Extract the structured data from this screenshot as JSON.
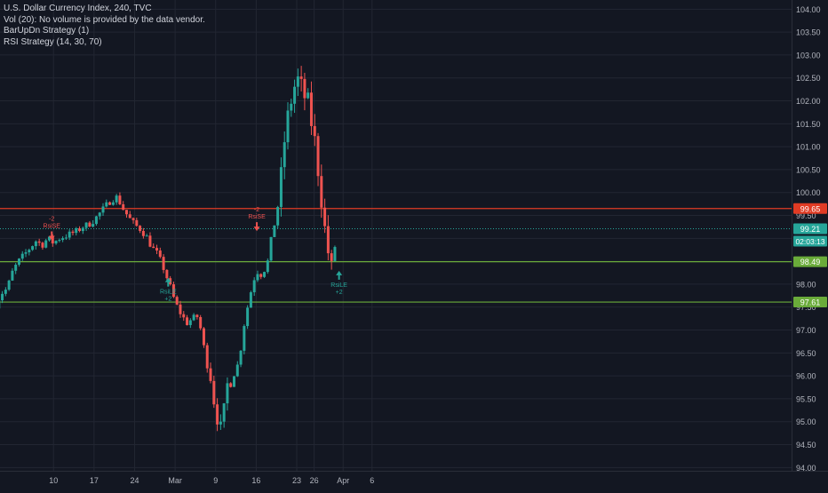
{
  "legend": {
    "title": "U.S. Dollar Currency Index, 240, TVC",
    "volume_note": "Vol (20): No volume is provided by the data vendor.",
    "strategy_1": "BarUpDn Strategy (1)",
    "strategy_2": "RSI Strategy (14, 30, 70)"
  },
  "colors": {
    "background": "#131722",
    "grid": "#222632",
    "up_candle": "#26a69a",
    "down_candle": "#ef5350",
    "resistance_line": "#e03b24",
    "support_line": "#6aab3a",
    "current_price_line": "#26a69a",
    "text": "#d1d4dc",
    "axis_text": "#b2b5be",
    "short_signal": "#ef5350",
    "long_signal": "#26a69a"
  },
  "chart_data": {
    "type": "candlestick",
    "title": "U.S. Dollar Currency Index, 240, TVC",
    "timeframe": "240",
    "source": "TVC",
    "ylim": [
      93.9,
      104.1
    ],
    "y_ticks": [
      "94.00",
      "94.50",
      "95.00",
      "95.50",
      "96.00",
      "96.50",
      "97.00",
      "97.50",
      "98.00",
      "98.50",
      "99.00",
      "99.50",
      "100.00",
      "100.50",
      "101.00",
      "101.50",
      "102.00",
      "102.50",
      "103.00",
      "103.50",
      "104.00"
    ],
    "x_ticks": [
      {
        "label": "10",
        "t": 10
      },
      {
        "label": "17",
        "t": 17
      },
      {
        "label": "24",
        "t": 24
      },
      {
        "label": "Mar",
        "t": 31
      },
      {
        "label": "9",
        "t": 38
      },
      {
        "label": "16",
        "t": 45
      },
      {
        "label": "23",
        "t": 52
      },
      {
        "label": "26",
        "t": 55
      },
      {
        "label": "Apr",
        "t": 60
      },
      {
        "label": "6",
        "t": 65
      }
    ],
    "close_path": [
      [
        0,
        97.55
      ],
      [
        1,
        97.8
      ],
      [
        2,
        97.9
      ],
      [
        3,
        98.3
      ],
      [
        4,
        98.5
      ],
      [
        5,
        98.65
      ],
      [
        6,
        98.8
      ],
      [
        7,
        98.95
      ],
      [
        8,
        98.85
      ],
      [
        9,
        99.0
      ],
      [
        10,
        98.9
      ],
      [
        11,
        99.0
      ],
      [
        12,
        99.05
      ],
      [
        13,
        99.1
      ],
      [
        14,
        99.15
      ],
      [
        15,
        99.25
      ],
      [
        16,
        99.3
      ],
      [
        17,
        99.4
      ],
      [
        18,
        99.55
      ],
      [
        19,
        99.7
      ],
      [
        20,
        99.85
      ],
      [
        21,
        99.9
      ],
      [
        22,
        99.65
      ],
      [
        23,
        99.45
      ],
      [
        24,
        99.3
      ],
      [
        25,
        99.2
      ],
      [
        26,
        99.05
      ],
      [
        27,
        98.8
      ],
      [
        28,
        98.65
      ],
      [
        29,
        98.35
      ],
      [
        30,
        98.0
      ],
      [
        31,
        97.6
      ],
      [
        32,
        97.35
      ],
      [
        33,
        97.15
      ],
      [
        34,
        97.25
      ],
      [
        35,
        97.3
      ],
      [
        36,
        96.6
      ],
      [
        37,
        96.1
      ],
      [
        38,
        95.2
      ],
      [
        39,
        94.8
      ],
      [
        40,
        95.8
      ],
      [
        41,
        96.0
      ],
      [
        42,
        96.3
      ],
      [
        43,
        97.2
      ],
      [
        44,
        97.8
      ],
      [
        45,
        98.3
      ],
      [
        46,
        98.2
      ],
      [
        47,
        98.5
      ],
      [
        48,
        99.3
      ],
      [
        49,
        99.9
      ],
      [
        50,
        101.3
      ],
      [
        51,
        102.0
      ],
      [
        52,
        102.5
      ],
      [
        53,
        102.2
      ],
      [
        54,
        101.9
      ],
      [
        55,
        101.2
      ],
      [
        56,
        100.2
      ],
      [
        57,
        99.0
      ],
      [
        58,
        98.3
      ],
      [
        59,
        99.2
      ]
    ],
    "levels": [
      {
        "name": "resistance",
        "value": 99.65,
        "label": "99.65"
      },
      {
        "name": "current-price",
        "value": 99.21,
        "label": "99.21",
        "countdown": "02:03:13"
      },
      {
        "name": "support-upper",
        "value": 98.49,
        "label": "98.49"
      },
      {
        "name": "support-lower",
        "value": 97.61,
        "label": "97.61"
      }
    ],
    "signals": [
      {
        "type": "short",
        "t": 9.7,
        "price": 98.9,
        "label": "RsiSE",
        "qty": "-2"
      },
      {
        "type": "long",
        "t": 29.8,
        "price": 98.2,
        "label": "RsiLE",
        "qty": "+2"
      },
      {
        "type": "short",
        "t": 45.1,
        "price": 99.1,
        "label": "RsiSE",
        "qty": "-2"
      },
      {
        "type": "long",
        "t": 59.3,
        "price": 98.35,
        "label": "RsiLE",
        "qty": "+2"
      }
    ],
    "grid": true,
    "legend_position": "top-left"
  }
}
